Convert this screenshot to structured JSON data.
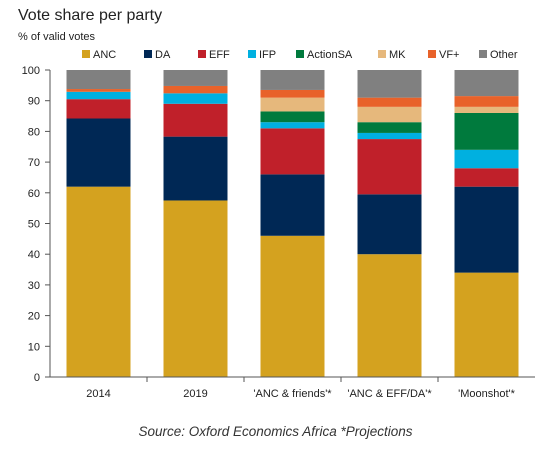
{
  "chart_data": {
    "type": "stacked-bar",
    "title": "Vote share per party",
    "subtitle": "% of valid votes",
    "ylim": [
      0,
      100
    ],
    "yticks": [
      0,
      10,
      20,
      30,
      40,
      50,
      60,
      70,
      80,
      90,
      100
    ],
    "grid": false,
    "legend_position": "top",
    "categories": [
      "2014",
      "2019",
      "'ANC & friends'*",
      "'ANC & EFF/DA'*",
      "'Moonshot'*"
    ],
    "series": [
      {
        "name": "ANC",
        "color": "#d4a21f",
        "values": [
          62,
          57.5,
          46,
          40,
          34
        ]
      },
      {
        "name": "DA",
        "color": "#002855",
        "values": [
          22.2,
          20.8,
          20,
          19.5,
          28
        ]
      },
      {
        "name": "EFF",
        "color": "#c0202a",
        "values": [
          6.3,
          10.7,
          15,
          18,
          6
        ]
      },
      {
        "name": "IFP",
        "color": "#00b0e0",
        "values": [
          2.4,
          3.4,
          2,
          2,
          6
        ]
      },
      {
        "name": "ActionSA",
        "color": "#007a3d",
        "values": [
          0,
          0,
          3.5,
          3.5,
          12
        ]
      },
      {
        "name": "MK",
        "color": "#e6b87c",
        "values": [
          0,
          0,
          4.5,
          5,
          2
        ]
      },
      {
        "name": "VF+",
        "color": "#e8622a",
        "values": [
          0.9,
          2.4,
          2.5,
          3,
          3.5
        ]
      },
      {
        "name": "Other",
        "color": "#808080",
        "values": [
          6.2,
          5.2,
          6.5,
          9,
          8.5
        ]
      }
    ],
    "source": "Source: Oxford Economics Africa *Projections"
  }
}
